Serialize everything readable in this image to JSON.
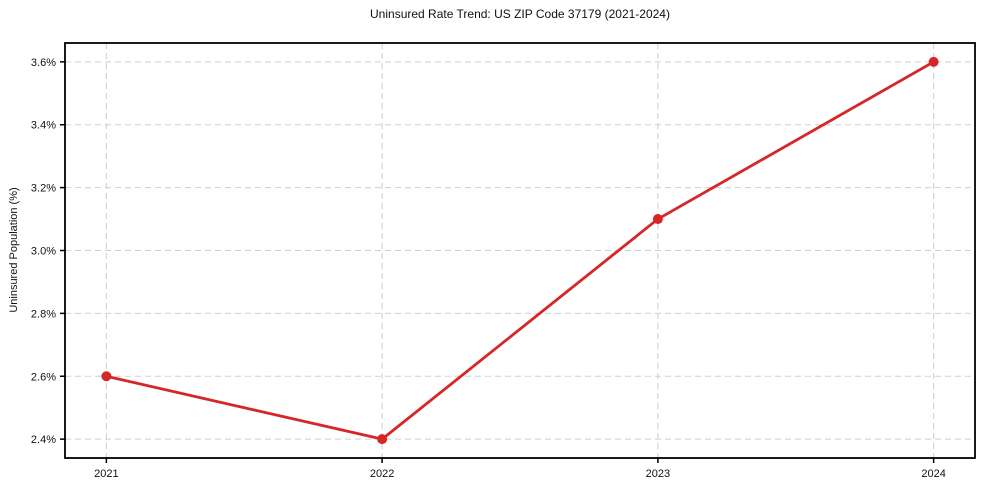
{
  "chart_data": {
    "type": "line",
    "title": "Uninsured Rate Trend: US ZIP Code 37179 (2021-2024)",
    "xlabel": "",
    "ylabel": "Uninsured Population (%)",
    "x": [
      2021,
      2022,
      2023,
      2024
    ],
    "x_tick_labels": [
      "2021",
      "2022",
      "2023",
      "2024"
    ],
    "values": [
      2.6,
      2.4,
      3.1,
      3.6
    ],
    "y_ticks": [
      2.4,
      2.6,
      2.8,
      3.0,
      3.2,
      3.4,
      3.6
    ],
    "y_tick_labels": [
      "2.4%",
      "2.6%",
      "2.8%",
      "3.0%",
      "3.2%",
      "3.4%",
      "3.6%"
    ],
    "xlim": [
      2020.85,
      2024.15
    ],
    "ylim": [
      2.34,
      3.66
    ],
    "grid": true,
    "grid_style": "dashed",
    "legend": "none",
    "line_color": "#d62728",
    "marker": "circle",
    "grid_color": "#d0d0d0",
    "axis_color": "#000000",
    "background_color": "#ffffff"
  }
}
